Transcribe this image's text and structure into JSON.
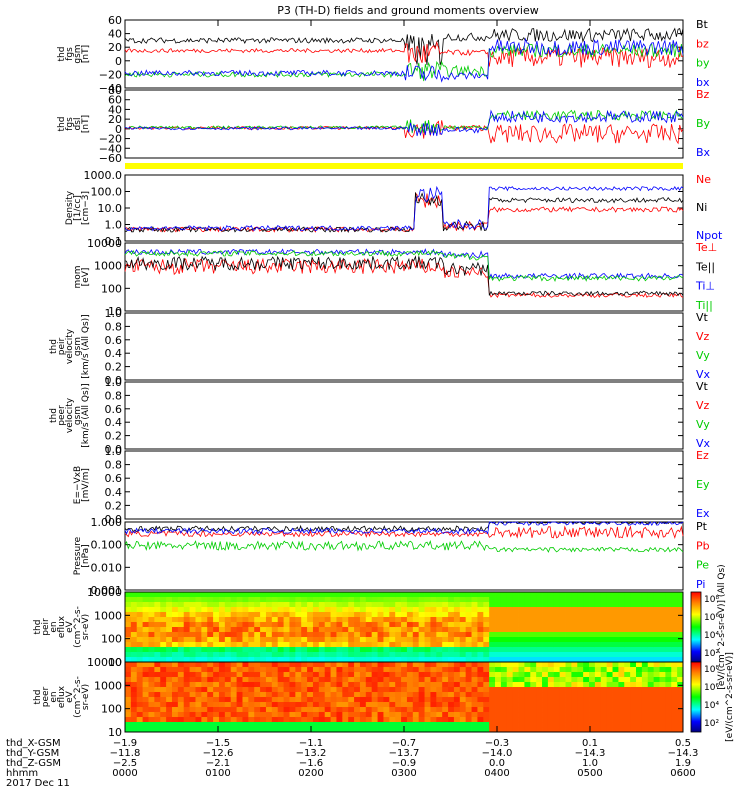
{
  "title": "P3 (TH-D) fields and ground moments overview",
  "colors": {
    "black": "#000000",
    "red": "#ff0000",
    "green": "#00cc00",
    "blue": "#0000ff",
    "yellow": "#ffff00",
    "brown": "#996633"
  },
  "chart_data": {
    "type": "line",
    "time_range_hhmm": [
      "0000",
      "0600"
    ],
    "panels": [
      {
        "id": "fgs-gsm",
        "ylabel": [
          "thd",
          "fgs",
          "gsm",
          "[nT]"
        ],
        "yticks": [
          "60",
          "40",
          "20",
          "0",
          "−20",
          "−40"
        ],
        "ylim": [
          -40,
          60
        ],
        "scale": "linear",
        "legend": [
          {
            "label": "Bt",
            "color": "black"
          },
          {
            "label": "bz",
            "color": "red"
          },
          {
            "label": "by",
            "color": "green"
          },
          {
            "label": "bx",
            "color": "blue"
          }
        ]
      },
      {
        "id": "fgs-dsl",
        "ylabel": [
          "thd",
          "fgs",
          "dsl",
          "[nT]"
        ],
        "yticks": [
          "80",
          "60",
          "40",
          "20",
          "0",
          "−20",
          "−40",
          "−60"
        ],
        "ylim": [
          -60,
          80
        ],
        "scale": "linear",
        "legend": [
          {
            "label": "Bz",
            "color": "red"
          },
          {
            "label": "By",
            "color": "green"
          },
          {
            "label": "Bx",
            "color": "blue"
          }
        ]
      },
      {
        "id": "density",
        "ylabel": [
          "Density",
          "[1/cc]",
          "[cm−3]"
        ],
        "yticks": [
          "1000.0",
          "100.0",
          "10.0",
          "1.0",
          "0.1"
        ],
        "ylim": [
          0.1,
          1000
        ],
        "scale": "log",
        "legend": [
          {
            "label": "Ne",
            "color": "red"
          },
          {
            "label": "Ni",
            "color": "black"
          },
          {
            "label": "Npot",
            "color": "blue"
          }
        ]
      },
      {
        "id": "temperature",
        "ylabel": [
          "mom",
          "[eV]"
        ],
        "yticks": [
          "10000",
          "1000",
          "100",
          "10"
        ],
        "ylim": [
          10,
          10000
        ],
        "scale": "log",
        "legend": [
          {
            "label": "Te⊥",
            "color": "red"
          },
          {
            "label": "Te||",
            "color": "black"
          },
          {
            "label": "Ti⊥",
            "color": "blue"
          },
          {
            "label": "Ti||",
            "color": "green"
          }
        ]
      },
      {
        "id": "peir-velocity",
        "ylabel": [
          "thd",
          "peir",
          "velocity",
          "gsm",
          "[km/s (All Qs)]"
        ],
        "yticks": [
          "1.0",
          "0.8",
          "0.6",
          "0.4",
          "0.2",
          "0.0"
        ],
        "ylim": [
          0,
          1
        ],
        "scale": "linear",
        "legend": [
          {
            "label": "Vt",
            "color": "black"
          },
          {
            "label": "Vz",
            "color": "red"
          },
          {
            "label": "Vy",
            "color": "green"
          },
          {
            "label": "Vx",
            "color": "blue"
          }
        ]
      },
      {
        "id": "peer-velocity",
        "ylabel": [
          "thd",
          "peer",
          "velocity",
          "gsm",
          "[km/s (All Qs)]"
        ],
        "yticks": [
          "1.0",
          "0.8",
          "0.6",
          "0.4",
          "0.2",
          "0.0"
        ],
        "ylim": [
          0,
          1
        ],
        "scale": "linear",
        "legend": [
          {
            "label": "Vt",
            "color": "black"
          },
          {
            "label": "Vz",
            "color": "red"
          },
          {
            "label": "Vy",
            "color": "green"
          },
          {
            "label": "Vx",
            "color": "blue"
          }
        ]
      },
      {
        "id": "efield",
        "ylabel": [
          "E=−VxB",
          "[mV/m]"
        ],
        "yticks": [
          "1.0",
          "0.8",
          "0.6",
          "0.4",
          "0.2",
          "0.0"
        ],
        "ylim": [
          0,
          1
        ],
        "scale": "linear",
        "legend": [
          {
            "label": "Ez",
            "color": "red"
          },
          {
            "label": "Ey",
            "color": "green"
          },
          {
            "label": "Ex",
            "color": "blue"
          }
        ]
      },
      {
        "id": "pressure",
        "ylabel": [
          "Pressure",
          "[nPa]"
        ],
        "yticks": [
          "1.000",
          "0.100",
          "0.010",
          "0.001"
        ],
        "ylim": [
          0.001,
          1
        ],
        "scale": "log",
        "legend": [
          {
            "label": "Pt",
            "color": "black"
          },
          {
            "label": "Pb",
            "color": "red"
          },
          {
            "label": "Pe",
            "color": "green"
          },
          {
            "label": "Pi",
            "color": "blue"
          }
        ]
      },
      {
        "id": "peir-spectrogram",
        "type": "heatmap",
        "ylabel": [
          "thd",
          "peir",
          "en",
          "eflux",
          "eV",
          "(cm^2-s-",
          "sr-eV)"
        ],
        "yticks": [
          "10000",
          "1000",
          "100",
          "10"
        ],
        "ylim": [
          10,
          10000
        ],
        "scale": "log"
      },
      {
        "id": "peer-spectrogram",
        "type": "heatmap",
        "ylabel": [
          "thd",
          "peer",
          "en",
          "eflux",
          "eV",
          "(cm^2-s-",
          "sr-eV)"
        ],
        "yticks": [
          "10000",
          "1000",
          "100",
          "10"
        ],
        "ylim": [
          10,
          10000
        ],
        "scale": "log"
      }
    ],
    "colorbars": [
      {
        "ticks": [
          "10⁸",
          "10⁶",
          "10⁴",
          "10²"
        ],
        "label": "[eV/(cm^2-s-sr-eV)] (All Qs)"
      },
      {
        "ticks": [
          "10⁸",
          "10⁶",
          "10⁴",
          "10²"
        ],
        "label": "[eV/(cm^2-s-sr-eV)]"
      }
    ],
    "x_axis": {
      "rows": [
        {
          "label": "thd_X-GSM",
          "values": [
            "−1.9",
            "−1.5",
            "−1.1",
            "−0.7",
            "−0.3",
            "0.1",
            "0.5"
          ]
        },
        {
          "label": "thd_Y-GSM",
          "values": [
            "−11.8",
            "−12.6",
            "−13.2",
            "−13.7",
            "−14.0",
            "−14.3",
            "−14.3"
          ]
        },
        {
          "label": "thd_Z-GSM",
          "values": [
            "−2.5",
            "−2.1",
            "−1.6",
            "−0.9",
            "0.0",
            "1.0",
            "1.9"
          ]
        },
        {
          "label": "hhmm",
          "values": [
            "0000",
            "0100",
            "0200",
            "0300",
            "0400",
            "0500",
            "0600"
          ]
        }
      ],
      "date": "2017 Dec 11"
    }
  }
}
